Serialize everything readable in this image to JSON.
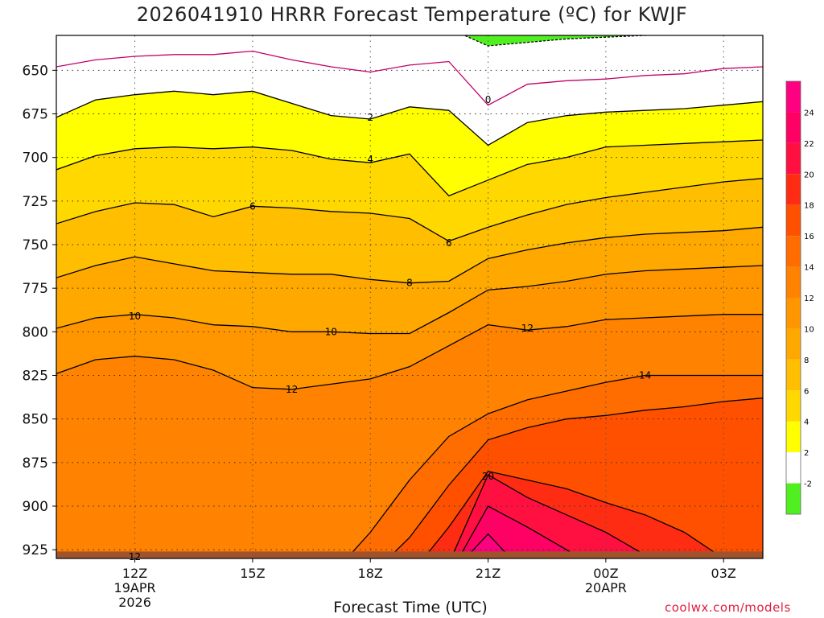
{
  "chart_data": {
    "type": "heatmap",
    "title": "2026041910 HRRR Forecast Temperature (ºC) for KWJF",
    "xlabel": "Forecast Time (UTC)",
    "credit": "coolwx.com/models",
    "y_axis": {
      "range": [
        630,
        930
      ],
      "ticks": [
        "650",
        "675",
        "700",
        "725",
        "750",
        "775",
        "800",
        "825",
        "850",
        "875",
        "900",
        "925"
      ]
    },
    "x_axis": {
      "range_hours_utc": [
        10,
        28
      ],
      "ticks": [
        {
          "hour": 12,
          "label": "12Z",
          "sub1": "19APR",
          "sub2": "2026"
        },
        {
          "hour": 15,
          "label": "15Z",
          "sub1": "",
          "sub2": ""
        },
        {
          "hour": 18,
          "label": "18Z",
          "sub1": "",
          "sub2": ""
        },
        {
          "hour": 21,
          "label": "21Z",
          "sub1": "",
          "sub2": ""
        },
        {
          "hour": 24,
          "label": "00Z",
          "sub1": "20APR",
          "sub2": ""
        },
        {
          "hour": 27,
          "label": "03Z",
          "sub1": "",
          "sub2": ""
        }
      ]
    },
    "x_hours": [
      10,
      11,
      12,
      13,
      14,
      15,
      16,
      17,
      18,
      19,
      20,
      21,
      22,
      23,
      24,
      25,
      26,
      27,
      28
    ],
    "isotherms": [
      {
        "level": -2,
        "pressure": [
          626,
          626,
          626,
          626,
          626,
          626,
          626,
          626,
          626,
          626,
          626,
          636,
          634,
          632,
          631,
          630,
          629,
          628,
          627
        ]
      },
      {
        "level": 0,
        "pressure": [
          648,
          644,
          642,
          641,
          641,
          639,
          644,
          648,
          651,
          647,
          645,
          670,
          658,
          656,
          655,
          653,
          652,
          649,
          648
        ]
      },
      {
        "level": 2,
        "pressure": [
          677,
          667,
          664,
          662,
          664,
          662,
          669,
          676,
          678,
          671,
          673,
          693,
          680,
          676,
          674,
          673,
          672,
          670,
          668
        ]
      },
      {
        "level": 4,
        "pressure": [
          707,
          699,
          695,
          694,
          695,
          694,
          696,
          701,
          703,
          698,
          722,
          713,
          704,
          700,
          694,
          693,
          692,
          691,
          690
        ]
      },
      {
        "level": 6,
        "pressure": [
          738,
          731,
          726,
          727,
          734,
          728,
          729,
          731,
          732,
          735,
          748,
          740,
          733,
          727,
          723,
          720,
          717,
          714,
          712
        ]
      },
      {
        "level": 8,
        "pressure": [
          769,
          762,
          757,
          761,
          765,
          766,
          767,
          767,
          770,
          772,
          771,
          758,
          753,
          749,
          746,
          744,
          743,
          742,
          740
        ]
      },
      {
        "level": 10,
        "pressure": [
          798,
          792,
          790,
          792,
          796,
          797,
          800,
          800,
          801,
          801,
          789,
          776,
          774,
          771,
          767,
          765,
          764,
          763,
          762
        ]
      },
      {
        "level": 12,
        "pressure": [
          824,
          816,
          814,
          816,
          822,
          832,
          833,
          830,
          827,
          820,
          808,
          796,
          799,
          797,
          793,
          792,
          791,
          790,
          790
        ]
      },
      {
        "level": 14,
        "pressure": [
          940,
          940,
          940,
          940,
          940,
          940,
          940,
          940,
          915,
          885,
          860,
          847,
          839,
          834,
          829,
          825,
          825,
          825,
          825
        ]
      },
      {
        "level": 16,
        "pressure": [
          940,
          940,
          940,
          940,
          940,
          940,
          940,
          940,
          940,
          918,
          888,
          862,
          855,
          850,
          848,
          845,
          843,
          840,
          838
        ]
      },
      {
        "level": 18,
        "pressure": [
          940,
          940,
          940,
          940,
          940,
          940,
          940,
          940,
          940,
          940,
          912,
          880,
          885,
          890,
          898,
          905,
          915,
          930,
          940
        ]
      },
      {
        "level": 20,
        "pressure": [
          940,
          940,
          940,
          940,
          940,
          940,
          940,
          940,
          940,
          940,
          933,
          882,
          895,
          905,
          915,
          928,
          940,
          940,
          940
        ]
      },
      {
        "level": 22,
        "pressure": [
          940,
          940,
          940,
          940,
          940,
          940,
          940,
          940,
          940,
          940,
          940,
          900,
          912,
          925,
          940,
          940,
          940,
          940,
          940
        ]
      },
      {
        "level": 24,
        "pressure": [
          940,
          940,
          940,
          940,
          940,
          940,
          940,
          940,
          940,
          940,
          940,
          916,
          940,
          940,
          940,
          940,
          940,
          940,
          940
        ]
      }
    ],
    "labels": [
      {
        "text": "0",
        "hour": 21.0,
        "pressure": 667
      },
      {
        "text": "2",
        "hour": 18.0,
        "pressure": 677
      },
      {
        "text": "4",
        "hour": 18.0,
        "pressure": 701
      },
      {
        "text": "6",
        "hour": 15.0,
        "pressure": 728
      },
      {
        "text": "6",
        "hour": 20.0,
        "pressure": 749
      },
      {
        "text": "8",
        "hour": 19.0,
        "pressure": 772
      },
      {
        "text": "10",
        "hour": 12.0,
        "pressure": 791
      },
      {
        "text": "10",
        "hour": 17.0,
        "pressure": 800
      },
      {
        "text": "12",
        "hour": 22.0,
        "pressure": 798
      },
      {
        "text": "12",
        "hour": 16.0,
        "pressure": 833
      },
      {
        "text": "14",
        "hour": 25.0,
        "pressure": 825
      },
      {
        "text": "20",
        "hour": 21.0,
        "pressure": 883
      },
      {
        "text": "12",
        "hour": 12.0,
        "pressure": 929
      }
    ],
    "ground_pressure": 926,
    "colorbar": {
      "labels": [
        "24",
        "22",
        "20",
        "18",
        "16",
        "14",
        "12",
        "10",
        "8",
        "6",
        "4",
        "2",
        "-2"
      ],
      "bands": [
        {
          "min": 24,
          "color": "#ff0080"
        },
        {
          "min": 22,
          "color": "#ff0064"
        },
        {
          "min": 20,
          "color": "#ff1040"
        },
        {
          "min": 18,
          "color": "#ff2c14"
        },
        {
          "min": 16,
          "color": "#ff5000"
        },
        {
          "min": 14,
          "color": "#ff6c00"
        },
        {
          "min": 12,
          "color": "#ff8200"
        },
        {
          "min": 10,
          "color": "#ff9600"
        },
        {
          "min": 8,
          "color": "#ffa800"
        },
        {
          "min": 6,
          "color": "#ffbe00"
        },
        {
          "min": 4,
          "color": "#ffd800"
        },
        {
          "min": 2,
          "color": "#ffff00"
        },
        {
          "min": -2,
          "color": "#ffffff"
        },
        {
          "min": -99,
          "color": "#50f020"
        }
      ]
    }
  }
}
